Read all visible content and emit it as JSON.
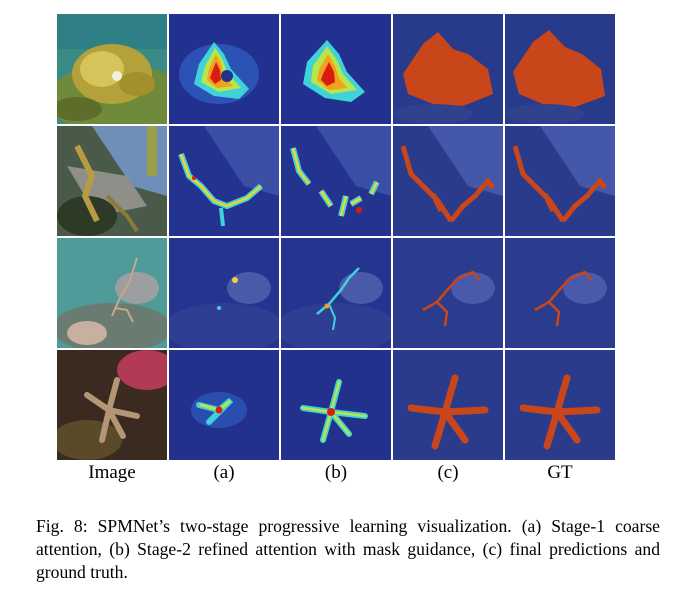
{
  "figure": {
    "columns": [
      "Image",
      "(a)",
      "(b)",
      "(c)",
      "GT"
    ],
    "caption": "Fig. 8: SPMNet’s two-stage progressive learning visualization. (a) Stage-1 coarse attention, (b) Stage-2 refined attention with mask guidance, (c) final predictions and ground truth.",
    "colors": {
      "heatmap_background": "#1f2f8f",
      "heatmap_hot": "#d81d10",
      "mask_overlay": "#c8461a"
    }
  }
}
